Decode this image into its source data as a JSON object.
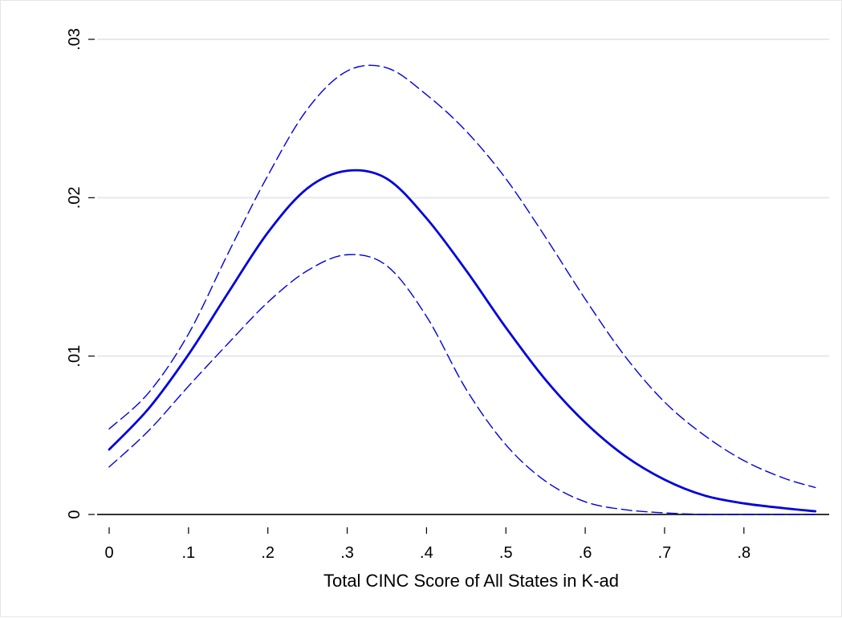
{
  "chart_data": {
    "type": "line",
    "title": "",
    "xlabel": "Total CINC Score of All States in K-ad",
    "ylabel": "",
    "xlim": [
      0,
      0.89
    ],
    "ylim": [
      0,
      0.03
    ],
    "x_ticks": [
      {
        "value": 0,
        "label": "0"
      },
      {
        "value": 0.1,
        "label": ".1"
      },
      {
        "value": 0.2,
        "label": ".2"
      },
      {
        "value": 0.3,
        "label": ".3"
      },
      {
        "value": 0.4,
        "label": ".4"
      },
      {
        "value": 0.5,
        "label": ".5"
      },
      {
        "value": 0.6,
        "label": ".6"
      },
      {
        "value": 0.7,
        "label": ".7"
      },
      {
        "value": 0.8,
        "label": ".8"
      }
    ],
    "y_ticks": [
      {
        "value": 0,
        "label": "0"
      },
      {
        "value": 0.01,
        "label": ".01"
      },
      {
        "value": 0.02,
        "label": ".02"
      },
      {
        "value": 0.03,
        "label": ".03"
      }
    ],
    "grid": "horizontal",
    "colors": {
      "line": "#0000dd",
      "grid": "#e8e8e8",
      "zero_line": "#333333"
    },
    "x": [
      0,
      0.05,
      0.1,
      0.15,
      0.2,
      0.25,
      0.3,
      0.35,
      0.4,
      0.45,
      0.5,
      0.55,
      0.6,
      0.65,
      0.7,
      0.75,
      0.8,
      0.85,
      0.89
    ],
    "series": [
      {
        "style": "dashed",
        "values": [
          0.0054,
          0.0077,
          0.0114,
          0.0165,
          0.0214,
          0.0256,
          0.028,
          0.0282,
          0.0265,
          0.0242,
          0.0212,
          0.0175,
          0.0136,
          0.01,
          0.0071,
          0.005,
          0.0034,
          0.0023,
          0.0017
        ]
      },
      {
        "style": "solid",
        "values": [
          0.0041,
          0.0067,
          0.0101,
          0.014,
          0.0178,
          0.0206,
          0.0217,
          0.0212,
          0.0187,
          0.0154,
          0.0118,
          0.0085,
          0.0058,
          0.0037,
          0.0022,
          0.0012,
          0.0007,
          0.0004,
          0.0002
        ]
      },
      {
        "style": "dashed",
        "values": [
          0.003,
          0.0053,
          0.0081,
          0.0108,
          0.0134,
          0.0154,
          0.0164,
          0.0157,
          0.0125,
          0.0079,
          0.0044,
          0.0021,
          0.0008,
          0.0003,
          0.0001,
          0.0,
          0.0,
          0.0,
          0.0
        ]
      }
    ]
  }
}
